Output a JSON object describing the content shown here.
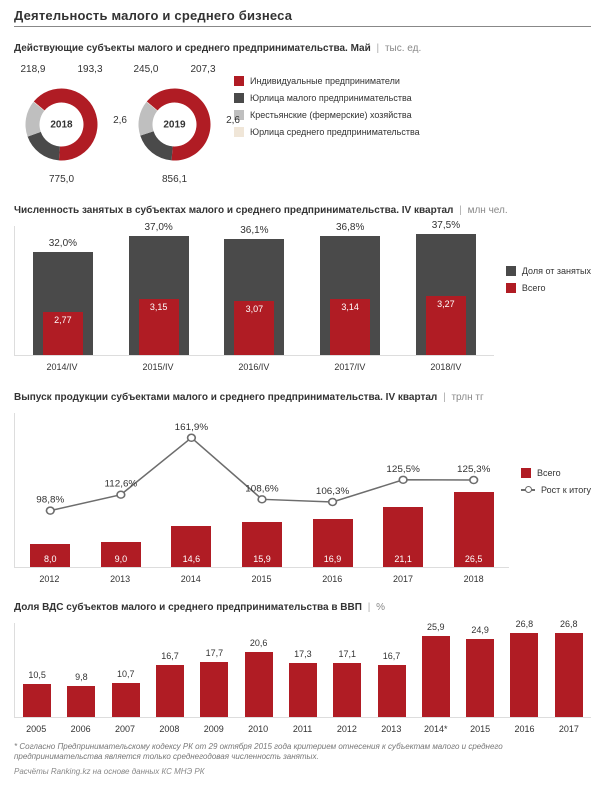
{
  "title": "Деятельность малого и среднего бизнеса",
  "colors": {
    "red": "#b01c24",
    "dark_grey": "#4a4a4a",
    "light_grey": "#bfbfbf",
    "pale": "#f0e6d8",
    "line_grey": "#6d6d6d"
  },
  "donuts": {
    "section_title": "Действующие субъекты малого и среднего предпринимательства. Май",
    "unit": "тыс. ед.",
    "legend": [
      {
        "label": "Индивидуальные предприниматели",
        "color": "#b01c24"
      },
      {
        "label": "Юрлица малого предпринимательства",
        "color": "#4a4a4a"
      },
      {
        "label": "Крестьянские (фермерские) хозяйства",
        "color": "#bfbfbf"
      },
      {
        "label": "Юрлица среднего предпринимательства",
        "color": "#f0e6d8"
      }
    ],
    "items": [
      {
        "year": "2018",
        "top_left": "218,9",
        "top_right": "193,3",
        "side": "2,6",
        "bottom": "775,0",
        "slices": [
          {
            "value": 775.0,
            "color": "#b01c24"
          },
          {
            "value": 218.9,
            "color": "#4a4a4a"
          },
          {
            "value": 193.3,
            "color": "#bfbfbf"
          },
          {
            "value": 2.6,
            "color": "#f0e6d8"
          }
        ]
      },
      {
        "year": "2019",
        "top_left": "245,0",
        "top_right": "207,3",
        "side": "2,6",
        "bottom": "856,1",
        "slices": [
          {
            "value": 856.1,
            "color": "#b01c24"
          },
          {
            "value": 245.0,
            "color": "#4a4a4a"
          },
          {
            "value": 207.3,
            "color": "#bfbfbf"
          },
          {
            "value": 2.6,
            "color": "#f0e6d8"
          }
        ]
      }
    ]
  },
  "chart2": {
    "section_title": "Численность занятых в субъектах малого и среднего предпринимательства. IV квартал",
    "unit": "млн чел.",
    "legend": [
      {
        "label": "Доля от занятых",
        "color": "#4a4a4a"
      },
      {
        "label": "Всего",
        "color": "#b01c24"
      }
    ],
    "ymax_grey": 40,
    "ymax_red": 4.0,
    "items": [
      {
        "xlabel": "2014/IV",
        "grey": 32.0,
        "grey_label": "32,0%",
        "red": 2.77,
        "red_label": "2,77"
      },
      {
        "xlabel": "2015/IV",
        "grey": 37.0,
        "grey_label": "37,0%",
        "red": 3.15,
        "red_label": "3,15"
      },
      {
        "xlabel": "2016/IV",
        "grey": 36.1,
        "grey_label": "36,1%",
        "red": 3.07,
        "red_label": "3,07"
      },
      {
        "xlabel": "2017/IV",
        "grey": 36.8,
        "grey_label": "36,8%",
        "red": 3.14,
        "red_label": "3,14"
      },
      {
        "xlabel": "2018/IV",
        "grey": 37.5,
        "grey_label": "37,5%",
        "red": 3.27,
        "red_label": "3,27"
      }
    ]
  },
  "chart3": {
    "section_title": "Выпуск продукции субъектами малого и среднего предпринимательства. IV квартал",
    "unit": "трлн тг",
    "legend": [
      {
        "type": "bar",
        "label": "Всего",
        "color": "#b01c24"
      },
      {
        "type": "line",
        "label": "Рост к итогу",
        "color": "#6d6d6d"
      }
    ],
    "bar_ymax": 30,
    "line_min": 90,
    "line_max": 170,
    "items": [
      {
        "x": "2012",
        "bar": 8.0,
        "bar_label": "8,0",
        "line": 98.8,
        "line_label": "98,8%"
      },
      {
        "x": "2013",
        "bar": 9.0,
        "bar_label": "9,0",
        "line": 112.6,
        "line_label": "112,6%"
      },
      {
        "x": "2014",
        "bar": 14.6,
        "bar_label": "14,6",
        "line": 161.9,
        "line_label": "161,9%"
      },
      {
        "x": "2015",
        "bar": 15.9,
        "bar_label": "15,9",
        "line": 108.6,
        "line_label": "108,6%"
      },
      {
        "x": "2016",
        "bar": 16.9,
        "bar_label": "16,9",
        "line": 106.3,
        "line_label": "106,3%"
      },
      {
        "x": "2017",
        "bar": 21.1,
        "bar_label": "21,1",
        "line": 125.5,
        "line_label": "125,5%"
      },
      {
        "x": "2018",
        "bar": 26.5,
        "bar_label": "26,5",
        "line": 125.3,
        "line_label": "125,3%"
      }
    ]
  },
  "chart4": {
    "section_title": "Доля ВДС субъектов малого и среднего предпринимательства в ВВП",
    "unit": "%",
    "ymax": 30,
    "items": [
      {
        "x": "2005",
        "v": 10.5,
        "label": "10,5"
      },
      {
        "x": "2006",
        "v": 9.8,
        "label": "9,8"
      },
      {
        "x": "2007",
        "v": 10.7,
        "label": "10,7"
      },
      {
        "x": "2008",
        "v": 16.7,
        "label": "16,7"
      },
      {
        "x": "2009",
        "v": 17.7,
        "label": "17,7"
      },
      {
        "x": "2010",
        "v": 20.6,
        "label": "20,6"
      },
      {
        "x": "2011",
        "v": 17.3,
        "label": "17,3"
      },
      {
        "x": "2012",
        "v": 17.1,
        "label": "17,1"
      },
      {
        "x": "2013",
        "v": 16.7,
        "label": "16,7"
      },
      {
        "x": "2014*",
        "v": 25.9,
        "label": "25,9"
      },
      {
        "x": "2015",
        "v": 24.9,
        "label": "24,9"
      },
      {
        "x": "2016",
        "v": 26.8,
        "label": "26,8"
      },
      {
        "x": "2017",
        "v": 26.8,
        "label": "26,8"
      }
    ]
  },
  "footnote": "* Согласно Предпринимательскому кодексу РК от 29 октября 2015 года критерием отнесения к субъектам малого и среднего предпринимательства является только среднегодовая численность занятых.",
  "source": "Расчёты Ranking.kz на основе данных КС МНЭ РК"
}
